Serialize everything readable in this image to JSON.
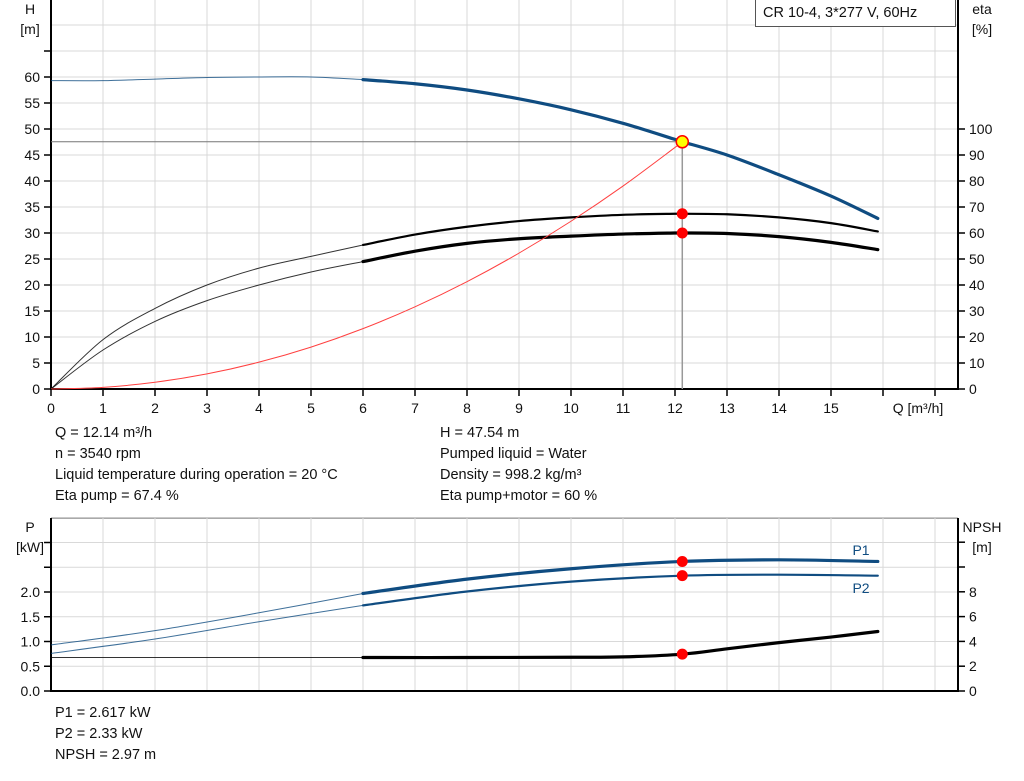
{
  "chart_data": [
    {
      "type": "line",
      "title": "CR 10-4, 3*277 V, 60Hz",
      "xlabel": "Q [m³/h]",
      "ylabel_left": [
        "H",
        "[m]"
      ],
      "ylabel_right": [
        "eta",
        "[%]"
      ],
      "xlim": [
        0,
        17
      ],
      "ylim_left": [
        0,
        70
      ],
      "ylim_right": [
        0,
        100
      ],
      "grid": true,
      "x_ticks": [
        "0",
        "1",
        "2",
        "3",
        "4",
        "5",
        "6",
        "7",
        "8",
        "9",
        "10",
        "11",
        "12",
        "13",
        "14",
        "15"
      ],
      "y_left_ticks": [
        "0",
        "5",
        "10",
        "15",
        "20",
        "25",
        "30",
        "35",
        "40",
        "45",
        "50",
        "55",
        "60"
      ],
      "y_right_ticks": [
        "0",
        "10",
        "20",
        "30",
        "40",
        "50",
        "60",
        "70",
        "80",
        "90",
        "100"
      ],
      "thick_from_q": 6,
      "series": [
        {
          "id": "head",
          "axis": "left",
          "color": "#0f4c81",
          "x": [
            0,
            1,
            2,
            3,
            4,
            5,
            6,
            7,
            8,
            9,
            10,
            11,
            12,
            12.14,
            13,
            14,
            15,
            15.9
          ],
          "y": [
            59.3,
            59.3,
            59.6,
            59.9,
            60.0,
            60.0,
            59.5,
            58.7,
            57.5,
            55.8,
            53.7,
            51.1,
            48.0,
            47.54,
            45.0,
            41.2,
            37.1,
            32.8
          ]
        },
        {
          "id": "eta-pump",
          "axis": "right",
          "color": "#000000",
          "x": [
            0,
            1,
            2,
            3,
            4,
            5,
            6,
            7,
            8,
            9,
            10,
            11,
            12,
            12.14,
            13,
            14,
            15,
            15.9
          ],
          "y": [
            0,
            19,
            31,
            40,
            46.5,
            51,
            55.4,
            59.4,
            62.4,
            64.6,
            66.0,
            67.0,
            67.4,
            67.4,
            67.2,
            66.0,
            63.8,
            60.6
          ]
        },
        {
          "id": "eta-pump-motor",
          "axis": "right",
          "color": "#000000",
          "x": [
            0,
            1,
            2,
            3,
            4,
            5,
            6,
            7,
            8,
            9,
            10,
            11,
            12,
            12.14,
            13,
            14,
            15,
            15.9
          ],
          "y": [
            0,
            15,
            26,
            34,
            40,
            45,
            49,
            53,
            56,
            57.8,
            58.8,
            59.6,
            60,
            60,
            59.8,
            58.6,
            56.4,
            53.6
          ]
        },
        {
          "id": "system-curve",
          "axis": "left",
          "color": "#ff4040",
          "x": [
            0,
            1,
            2,
            3,
            4,
            5,
            6,
            7,
            8,
            9,
            10,
            11,
            12,
            12.14
          ],
          "y": [
            0,
            0.32,
            1.29,
            2.9,
            5.16,
            8.06,
            11.61,
            15.81,
            20.64,
            26.13,
            32.26,
            39.03,
            46.45,
            47.54
          ]
        }
      ],
      "duty_point": {
        "q": 12.14,
        "h": 47.54,
        "eta_pump": 67.4,
        "eta_pump_motor": 60
      },
      "colors": {
        "duty_fill": "#ffff00",
        "marker": "#ff0000",
        "grid": "#d9d9d9"
      }
    },
    {
      "type": "line",
      "ylabel_left": [
        "P",
        "[kW]"
      ],
      "ylabel_right": [
        "NPSH",
        "[m]"
      ],
      "xlim": [
        0,
        17
      ],
      "ylim_left": [
        0,
        3.5
      ],
      "ylim_right": [
        0,
        14
      ],
      "grid": true,
      "y_left_ticks": [
        "0.0",
        "0.5",
        "1.0",
        "1.5",
        "2.0"
      ],
      "y_right_ticks": [
        "0",
        "2",
        "4",
        "6",
        "8"
      ],
      "thick_from_q": 6,
      "series": [
        {
          "id": "p1",
          "name": "P1",
          "axis": "left",
          "color": "#0f4c81",
          "x": [
            0,
            2,
            4,
            6,
            8,
            10,
            12.14,
            14,
            15.9
          ],
          "y": [
            0.93,
            1.22,
            1.58,
            1.97,
            2.26,
            2.47,
            2.617,
            2.65,
            2.617
          ]
        },
        {
          "id": "p2",
          "name": "P2",
          "axis": "left",
          "color": "#0f4c81",
          "x": [
            0,
            2,
            4,
            6,
            8,
            10,
            12.14,
            14,
            15.9
          ],
          "y": [
            0.76,
            1.05,
            1.4,
            1.73,
            2.01,
            2.21,
            2.33,
            2.35,
            2.33
          ]
        },
        {
          "id": "npsh",
          "axis": "right",
          "color": "#000000",
          "x": [
            0,
            2,
            4,
            6,
            8,
            10,
            11,
            12.14,
            13,
            14,
            15,
            15.9
          ],
          "y": [
            2.7,
            2.7,
            2.7,
            2.7,
            2.7,
            2.72,
            2.75,
            2.97,
            3.4,
            3.9,
            4.35,
            4.8
          ]
        }
      ],
      "duty_point": {
        "q": 12.14,
        "p1": 2.617,
        "p2": 2.33,
        "npsh": 2.97
      }
    }
  ],
  "info_top": {
    "left": [
      "Q = 12.14 m³/h",
      "n = 3540 rpm",
      "Liquid temperature during operation = 20 °C",
      "Eta pump = 67.4 %"
    ],
    "right": [
      "H = 47.54 m",
      "Pumped liquid = Water",
      "Density = 998.2 kg/m³",
      "Eta pump+motor = 60 %"
    ]
  },
  "info_bottom": [
    "P1 = 2.617 kW",
    "P2 = 2.33 kW",
    "NPSH = 2.97 m"
  ]
}
